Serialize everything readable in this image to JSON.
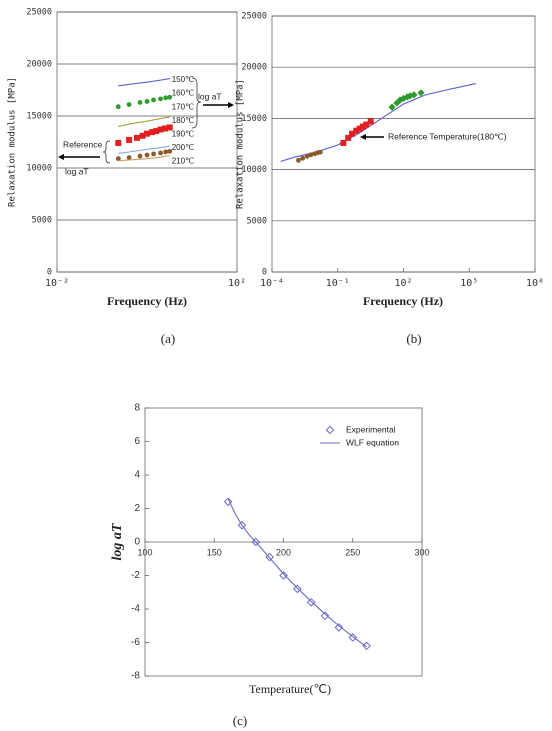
{
  "chart_data": [
    {
      "type": "line",
      "caption": "(a)",
      "x_label": "Frequency (Hz)",
      "y_label": "Relaxation modulus [MPa]",
      "xscale": "log",
      "xlim": [
        0.01,
        100
      ],
      "xticks": [
        {
          "value": 0.01,
          "label": "10⁻²"
        },
        {
          "value": 100,
          "label": "10²"
        }
      ],
      "ylim": [
        0,
        25000
      ],
      "yticks": [
        0,
        5000,
        10000,
        15000,
        20000,
        25000
      ],
      "grid": true,
      "annotations": [
        "log aT",
        "Reference",
        "log aT"
      ],
      "series": [
        {
          "name": "150℃",
          "color": "#5a5ad0",
          "mode": "line",
          "x": [
            0.23,
            0.5,
            1,
            2,
            3.2
          ],
          "values": [
            17900,
            18100,
            18250,
            18450,
            18600
          ]
        },
        {
          "name": "160℃",
          "color": "#2e9a2e",
          "mode": "markers",
          "marker": "circle",
          "x": [
            0.23,
            0.4,
            0.7,
            1,
            1.4,
            2,
            2.6,
            3.2
          ],
          "values": [
            15900,
            16100,
            16300,
            16400,
            16550,
            16650,
            16750,
            16800
          ]
        },
        {
          "name": "170℃",
          "color": "#a0a040",
          "mode": "line",
          "x": [
            0.23,
            0.5,
            1,
            2,
            3.2
          ],
          "values": [
            14000,
            14300,
            14500,
            14750,
            14900
          ]
        },
        {
          "name": "180℃",
          "color": "#e02020",
          "mode": "markers",
          "marker": "square",
          "x": [
            0.23,
            0.4,
            0.6,
            0.8,
            1,
            1.3,
            1.6,
            2,
            2.5,
            3.2
          ],
          "values": [
            12400,
            12700,
            12900,
            13100,
            13300,
            13450,
            13550,
            13700,
            13800,
            13900
          ]
        },
        {
          "name": "190℃",
          "color": "#8aa6e6",
          "mode": "line",
          "x": [
            0.23,
            0.5,
            1,
            2,
            3.2
          ],
          "values": [
            11400,
            11600,
            11800,
            11950,
            12100
          ]
        },
        {
          "name": "200℃",
          "color": "#8b5a2b",
          "mode": "markers",
          "marker": "circle",
          "x": [
            0.23,
            0.4,
            0.7,
            1,
            1.4,
            2,
            2.6,
            3.2
          ],
          "values": [
            10900,
            11000,
            11150,
            11250,
            11350,
            11450,
            11550,
            11600
          ]
        },
        {
          "name": "210℃",
          "color": "#c8a060",
          "mode": "line",
          "x": [
            0.23,
            0.5,
            1,
            2,
            3.2
          ],
          "values": [
            10700,
            10800,
            10900,
            11050,
            11200
          ]
        }
      ]
    },
    {
      "type": "line",
      "caption": "(b)",
      "x_label": "Frequency (Hz)",
      "y_label": "Relaxation modulus [MPa]",
      "xscale": "log",
      "xlim": [
        0.0001,
        100000000
      ],
      "xticks": [
        {
          "value": 0.0001,
          "label": "10⁻⁴"
        },
        {
          "value": 0.1,
          "label": "10⁻¹"
        },
        {
          "value": 100,
          "label": "10²"
        },
        {
          "value": 100000,
          "label": "10⁵"
        },
        {
          "value": 100000000,
          "label": "10⁸"
        }
      ],
      "ylim": [
        0,
        25000
      ],
      "yticks": [
        0,
        5000,
        10000,
        15000,
        20000,
        25000
      ],
      "grid": true,
      "annotations": [
        "Reference Temperature(180℃)"
      ],
      "series": [
        {
          "color": "#5a5ad0",
          "mode": "line",
          "x": [
            0.00025,
            0.001,
            0.01,
            0.1,
            1,
            10,
            100,
            1000,
            10000,
            200000
          ],
          "values": [
            10800,
            11200,
            11700,
            12400,
            13600,
            15000,
            16400,
            17300,
            17800,
            18400
          ]
        },
        {
          "color": "#8b5a2b",
          "mode": "markers",
          "marker": "circle",
          "x": [
            0.0016,
            0.0025,
            0.004,
            0.006,
            0.009,
            0.012,
            0.016
          ],
          "values": [
            10900,
            11100,
            11300,
            11450,
            11550,
            11650,
            11700
          ]
        },
        {
          "color": "#e02020",
          "mode": "markers",
          "marker": "square",
          "x": [
            0.18,
            0.3,
            0.45,
            0.7,
            1,
            1.4,
            2,
            3.2
          ],
          "values": [
            12600,
            13100,
            13500,
            13800,
            14000,
            14200,
            14400,
            14700
          ]
        },
        {
          "color": "#2e9a2e",
          "mode": "markers",
          "marker": "diamond",
          "x": [
            30,
            50,
            70,
            100,
            150,
            200,
            300,
            630
          ],
          "values": [
            16100,
            16500,
            16800,
            16950,
            17100,
            17200,
            17300,
            17500
          ]
        }
      ]
    },
    {
      "type": "line",
      "caption": "(c)",
      "x_label": "Temperature(℃)",
      "y_label": "log aT",
      "xlim": [
        100,
        300
      ],
      "xticks": [
        100,
        150,
        200,
        250,
        300
      ],
      "ylim": [
        -8,
        8
      ],
      "yticks": [
        -8,
        -6,
        -4,
        -2,
        0,
        2,
        4,
        6,
        8
      ],
      "grid": false,
      "xaxis_position": "zero",
      "legend": "top-right",
      "series": [
        {
          "name": "Experimental",
          "color": "#6a6ac8",
          "mode": "markers",
          "marker": "open-diamond",
          "x": [
            160,
            170,
            180,
            190,
            200,
            210,
            220,
            230,
            240,
            250,
            260
          ],
          "values": [
            2.4,
            1.0,
            0,
            -0.9,
            -2.0,
            -2.8,
            -3.6,
            -4.4,
            -5.1,
            -5.7,
            -6.2
          ]
        },
        {
          "name": "WLF equation",
          "color": "#6a6ac8",
          "mode": "line",
          "x": [
            160,
            165,
            170,
            175,
            180,
            190,
            200,
            210,
            220,
            230,
            240,
            250,
            260
          ],
          "values": [
            2.6,
            1.7,
            1.0,
            0.45,
            0,
            -0.95,
            -1.9,
            -2.75,
            -3.55,
            -4.3,
            -5.0,
            -5.65,
            -6.25
          ]
        }
      ]
    }
  ]
}
